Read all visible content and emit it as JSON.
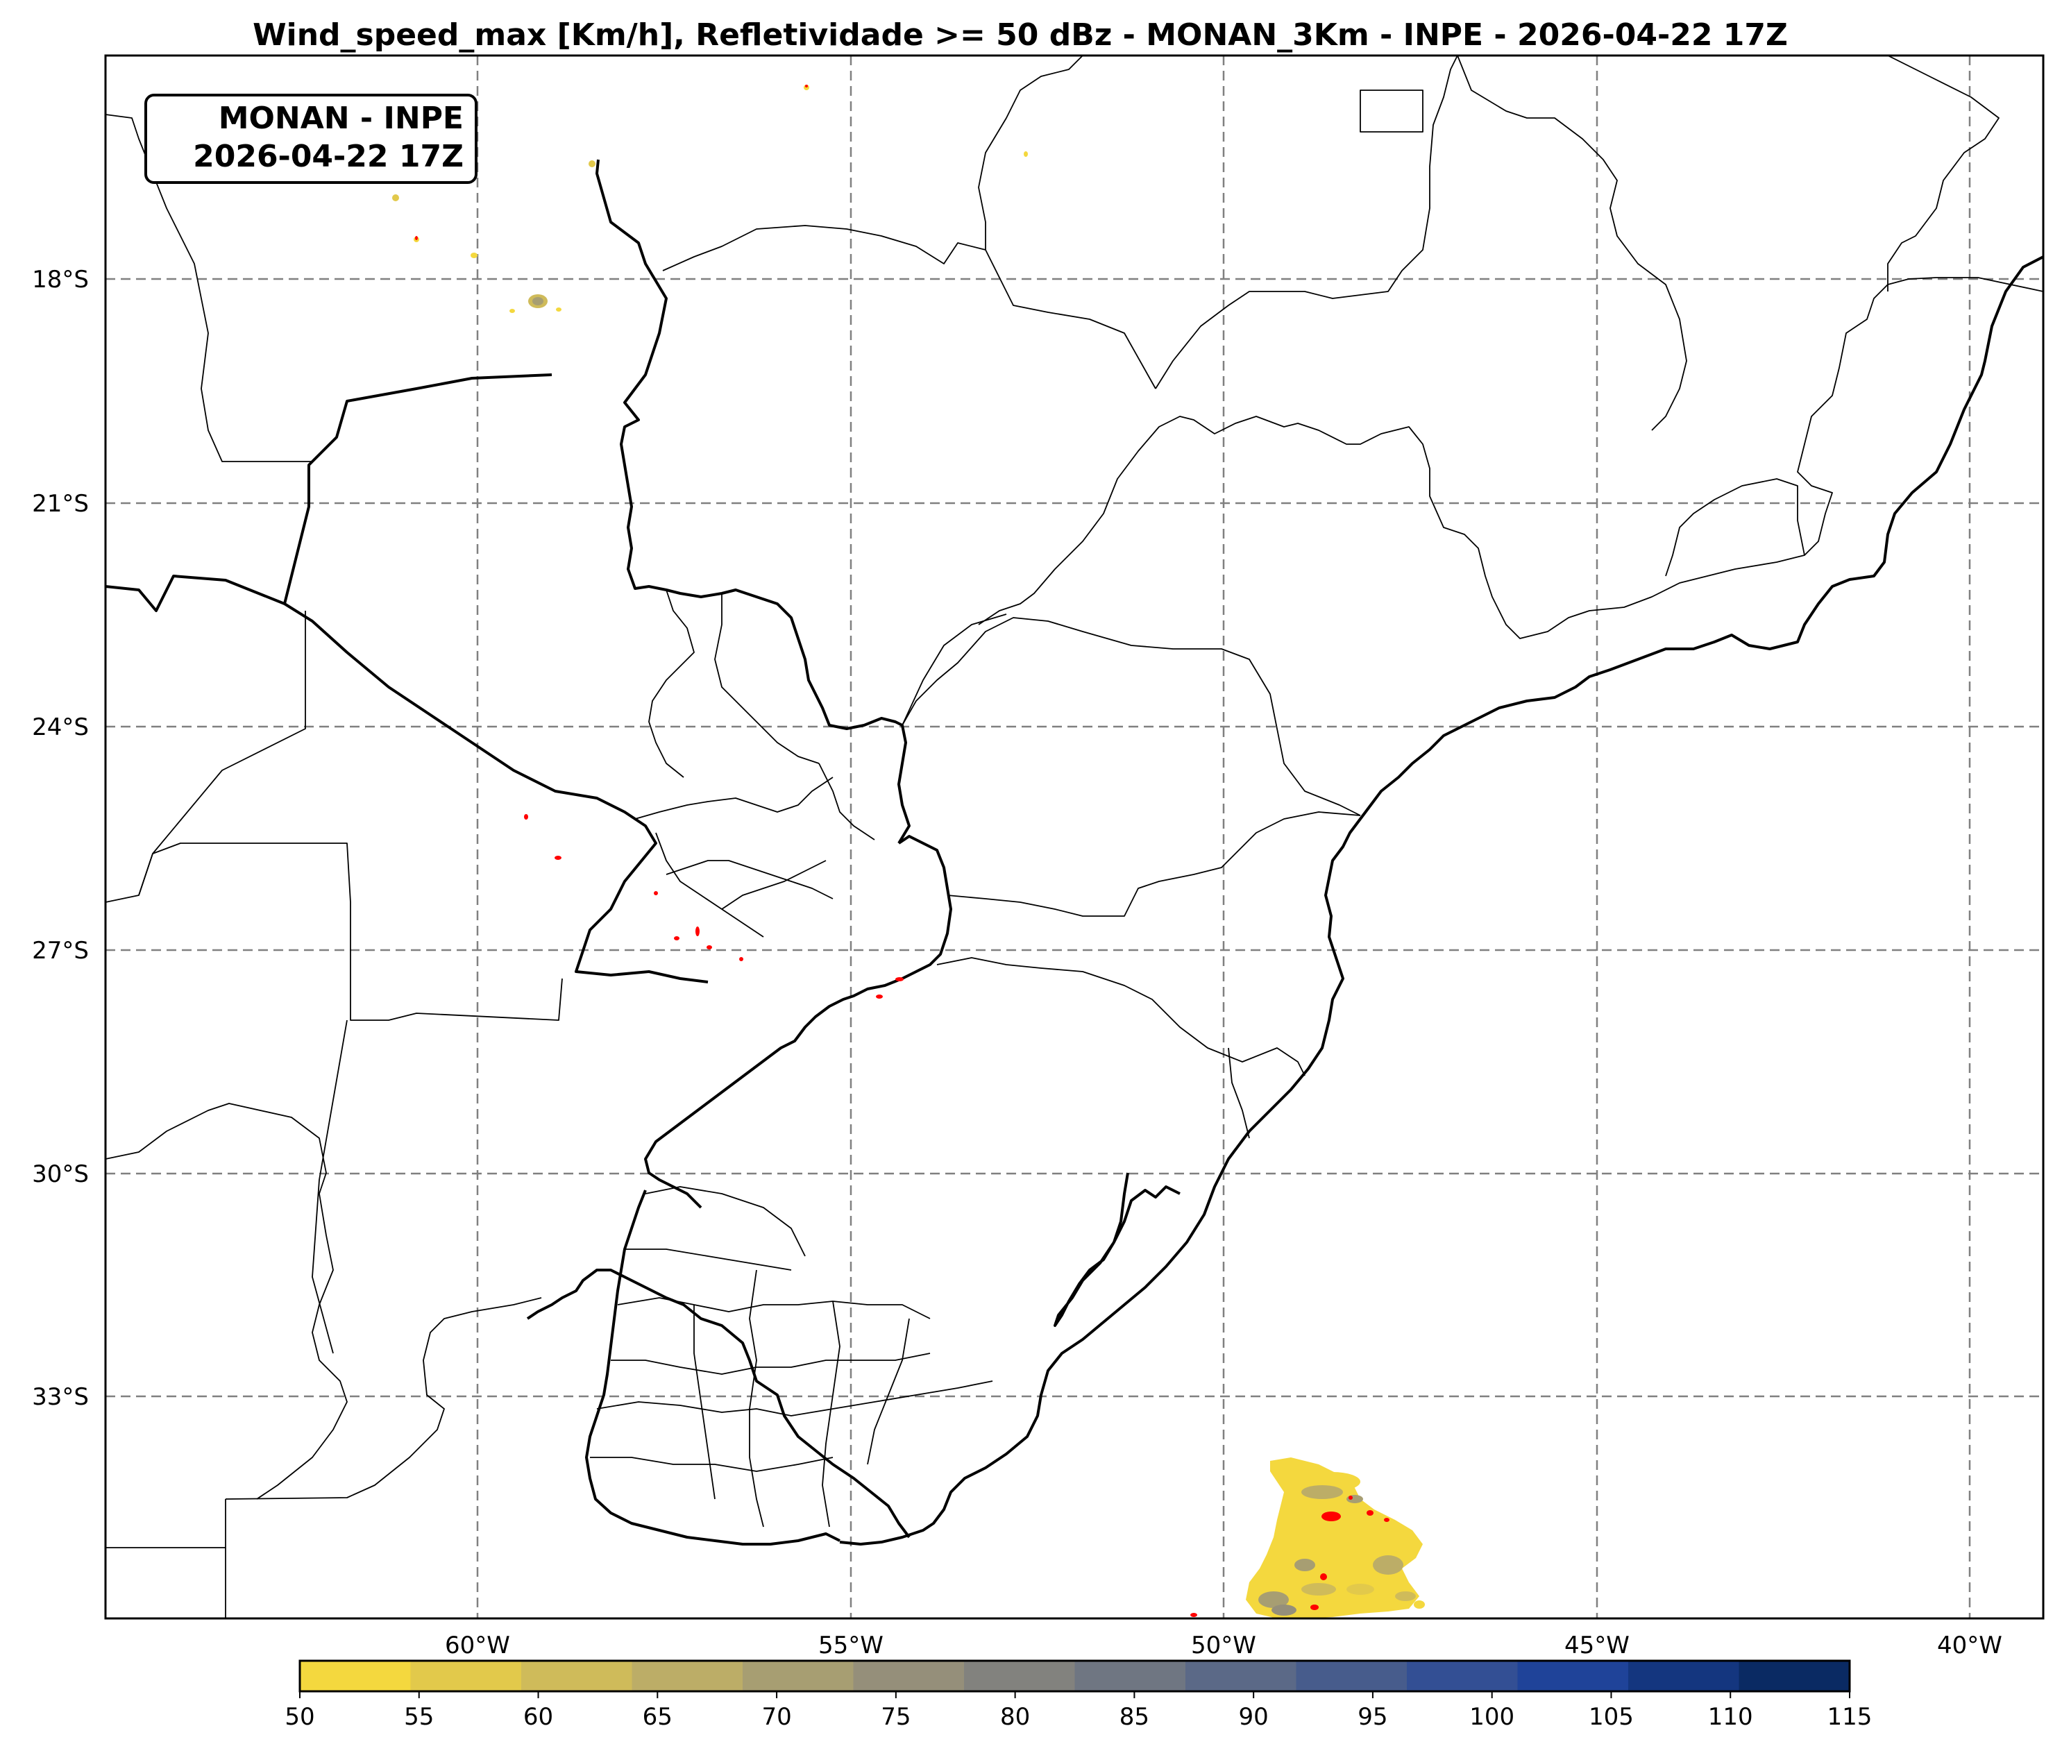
{
  "title": "Wind_speed_max [Km/h], Refletividade >= 50 dBz - MONAN_3Km - INPE - 2026-04-22 17Z",
  "inset": {
    "line1": "MONAN - INPE",
    "line2": "2026-04-22 17Z"
  },
  "lat_labels": [
    "18°S",
    "21°S",
    "24°S",
    "27°S",
    "30°S",
    "33°S"
  ],
  "lon_labels": [
    "60°W",
    "55°W",
    "50°W",
    "45°W",
    "40°W"
  ],
  "colorbar": {
    "ticks": [
      "50",
      "55",
      "60",
      "65",
      "70",
      "75",
      "80",
      "85",
      "90",
      "95",
      "100",
      "105",
      "110",
      "115"
    ],
    "colors": [
      "#f4d83e",
      "#e2c94b",
      "#cfbb5a",
      "#bcad67",
      "#a79e72",
      "#958f7a",
      "#82827e",
      "#6f7682",
      "#5b6987",
      "#475c8c",
      "#334f94",
      "#1f4399",
      "#14367f",
      "#0a2a63"
    ]
  },
  "reflectivity_color": "#ff0000"
}
